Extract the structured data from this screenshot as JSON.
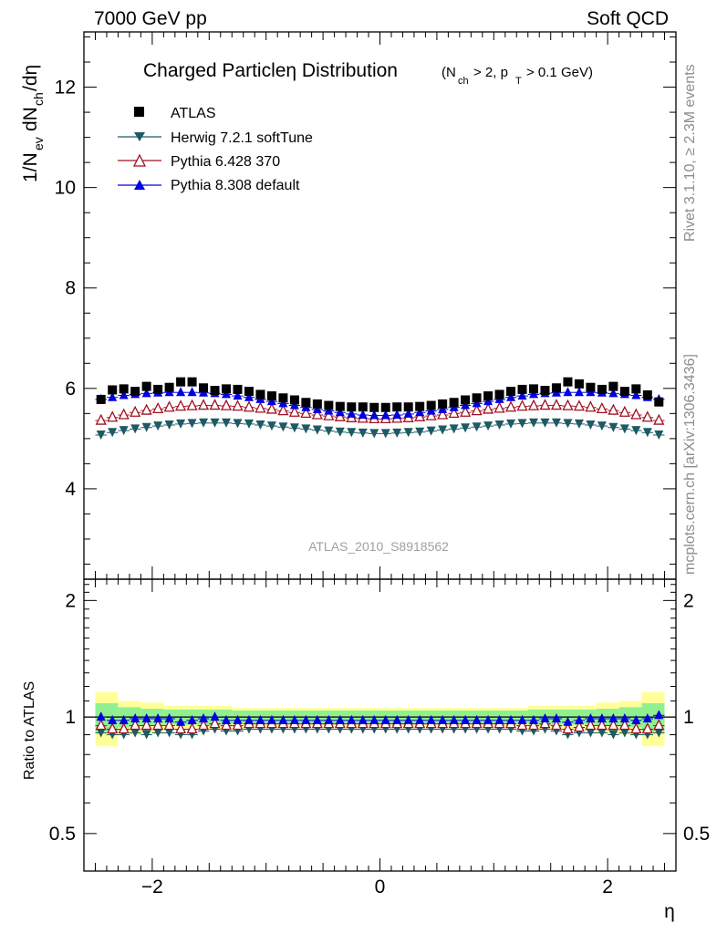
{
  "header": {
    "energy_label": "7000 GeV pp",
    "category_label": "Soft QCD"
  },
  "side_labels": {
    "rivet": "Rivet 3.1.10, ≥ 2.3M events",
    "mcplots": "mcplots.cern.ch [arXiv:1306.3436]"
  },
  "chart_data": [
    {
      "type": "scatter",
      "title": "Charged Particleη Distribution",
      "title_cuts": "(N_ch > 2, p_T > 0.1 GeV)",
      "ylabel": "1/N_ev dN_ch/dη",
      "xlabel": "",
      "watermark": "ATLAS_2010_S8918562",
      "xlim": [
        -2.6,
        2.6
      ],
      "ylim": [
        2.2,
        13.1
      ],
      "y_ticks": [
        4,
        6,
        8,
        10,
        12
      ],
      "legend_position": "top-left",
      "x": [
        -2.45,
        -2.35,
        -2.25,
        -2.15,
        -2.05,
        -1.95,
        -1.85,
        -1.75,
        -1.65,
        -1.55,
        -1.45,
        -1.35,
        -1.25,
        -1.15,
        -1.05,
        -0.95,
        -0.85,
        -0.75,
        -0.65,
        -0.55,
        -0.45,
        -0.35,
        -0.25,
        -0.15,
        -0.05,
        0.05,
        0.15,
        0.25,
        0.35,
        0.45,
        0.55,
        0.65,
        0.75,
        0.85,
        0.95,
        1.05,
        1.15,
        1.25,
        1.35,
        1.45,
        1.55,
        1.65,
        1.75,
        1.85,
        1.95,
        2.05,
        2.15,
        2.25,
        2.35,
        2.45
      ],
      "series": [
        {
          "name": "ATLAS",
          "marker": "square",
          "color": "#000000",
          "values": [
            5.78,
            5.97,
            5.99,
            5.94,
            6.04,
            5.98,
            6.02,
            6.13,
            6.13,
            6.01,
            5.96,
            5.99,
            5.98,
            5.94,
            5.88,
            5.85,
            5.81,
            5.77,
            5.72,
            5.69,
            5.66,
            5.64,
            5.63,
            5.63,
            5.62,
            5.62,
            5.63,
            5.63,
            5.64,
            5.66,
            5.69,
            5.72,
            5.77,
            5.81,
            5.85,
            5.88,
            5.94,
            5.98,
            5.99,
            5.96,
            6.01,
            6.13,
            6.09,
            6.02,
            5.98,
            6.04,
            5.94,
            5.99,
            5.87,
            5.73
          ]
        },
        {
          "name": "Herwig 7.2.1 softTune",
          "marker": "triangle-down",
          "color": "#1e5a64",
          "values": [
            5.07,
            5.12,
            5.16,
            5.19,
            5.22,
            5.25,
            5.27,
            5.29,
            5.3,
            5.31,
            5.31,
            5.31,
            5.3,
            5.29,
            5.27,
            5.25,
            5.23,
            5.21,
            5.19,
            5.17,
            5.15,
            5.13,
            5.12,
            5.11,
            5.1,
            5.1,
            5.11,
            5.12,
            5.13,
            5.15,
            5.17,
            5.19,
            5.21,
            5.23,
            5.25,
            5.27,
            5.29,
            5.3,
            5.31,
            5.31,
            5.31,
            5.3,
            5.29,
            5.27,
            5.25,
            5.22,
            5.19,
            5.16,
            5.12,
            5.07
          ]
        },
        {
          "name": "Pythia 6.428 370",
          "marker": "triangle-up-open",
          "color": "#a01020",
          "values": [
            5.36,
            5.42,
            5.47,
            5.52,
            5.56,
            5.59,
            5.62,
            5.64,
            5.65,
            5.66,
            5.66,
            5.65,
            5.64,
            5.62,
            5.6,
            5.58,
            5.55,
            5.52,
            5.5,
            5.47,
            5.45,
            5.43,
            5.41,
            5.4,
            5.39,
            5.39,
            5.4,
            5.41,
            5.43,
            5.45,
            5.47,
            5.5,
            5.52,
            5.55,
            5.58,
            5.6,
            5.62,
            5.64,
            5.65,
            5.66,
            5.66,
            5.65,
            5.64,
            5.62,
            5.59,
            5.56,
            5.52,
            5.47,
            5.42,
            5.36
          ]
        },
        {
          "name": "Pythia 8.308 default",
          "marker": "triangle-up",
          "color": "#0000e0",
          "values": [
            5.78,
            5.82,
            5.86,
            5.88,
            5.9,
            5.91,
            5.92,
            5.92,
            5.92,
            5.91,
            5.9,
            5.88,
            5.85,
            5.82,
            5.78,
            5.74,
            5.7,
            5.66,
            5.62,
            5.58,
            5.55,
            5.52,
            5.49,
            5.47,
            5.46,
            5.46,
            5.47,
            5.49,
            5.52,
            5.55,
            5.58,
            5.62,
            5.66,
            5.7,
            5.74,
            5.78,
            5.82,
            5.85,
            5.88,
            5.9,
            5.91,
            5.92,
            5.92,
            5.92,
            5.91,
            5.9,
            5.88,
            5.86,
            5.82,
            5.78
          ]
        }
      ]
    },
    {
      "type": "scatter",
      "ylabel": "Ratio to ATLAS",
      "xlabel": "η",
      "xlim": [
        -2.6,
        2.6
      ],
      "ylim": [
        0.4,
        2.27
      ],
      "x_ticks": [
        -2,
        0,
        2
      ],
      "x_tick_labels": [
        "−2",
        "0",
        "2"
      ],
      "y_ticks": [
        0.5,
        1,
        2
      ],
      "y_tick_labels": [
        "0.5",
        "1",
        "2"
      ],
      "band_inner_color": "#90f090",
      "band_outer_color": "#ffff99",
      "band_edges": [
        -2.5,
        -2.3,
        -2.1,
        -1.9,
        -1.3,
        1.3,
        1.9,
        2.1,
        2.3,
        2.5
      ],
      "band_inner_halfwidth": [
        0.085,
        0.06,
        0.05,
        0.045,
        0.04,
        0.045,
        0.05,
        0.06,
        0.085
      ],
      "band_outer_halfwidth": [
        0.16,
        0.1,
        0.09,
        0.07,
        0.055,
        0.07,
        0.09,
        0.1,
        0.16
      ],
      "series": [
        {
          "name": "Herwig 7.2.1 softTune",
          "marker": "triangle-down",
          "color": "#1e5a64",
          "values": [
            0.91,
            0.9,
            0.9,
            0.91,
            0.9,
            0.91,
            0.91,
            0.9,
            0.9,
            0.92,
            0.93,
            0.92,
            0.92,
            0.93,
            0.93,
            0.93,
            0.93,
            0.93,
            0.93,
            0.93,
            0.93,
            0.93,
            0.93,
            0.93,
            0.93,
            0.93,
            0.93,
            0.93,
            0.93,
            0.93,
            0.93,
            0.93,
            0.93,
            0.93,
            0.93,
            0.93,
            0.93,
            0.92,
            0.92,
            0.93,
            0.92,
            0.9,
            0.91,
            0.91,
            0.91,
            0.9,
            0.91,
            0.9,
            0.9,
            0.91
          ]
        },
        {
          "name": "Pythia 6.428 370",
          "marker": "triangle-up-open",
          "color": "#a01020",
          "values": [
            0.95,
            0.93,
            0.93,
            0.95,
            0.95,
            0.95,
            0.95,
            0.93,
            0.93,
            0.95,
            0.96,
            0.95,
            0.95,
            0.96,
            0.96,
            0.96,
            0.96,
            0.96,
            0.96,
            0.96,
            0.96,
            0.96,
            0.96,
            0.96,
            0.96,
            0.96,
            0.96,
            0.96,
            0.96,
            0.96,
            0.96,
            0.96,
            0.96,
            0.96,
            0.96,
            0.96,
            0.96,
            0.95,
            0.95,
            0.96,
            0.95,
            0.93,
            0.94,
            0.95,
            0.95,
            0.95,
            0.95,
            0.93,
            0.93,
            0.95
          ]
        },
        {
          "name": "Pythia 8.308 default",
          "marker": "triangle-up",
          "color": "#0000e0",
          "values": [
            1.0,
            0.98,
            0.98,
            0.99,
            0.99,
            0.99,
            0.99,
            0.97,
            0.98,
            0.99,
            1.0,
            0.98,
            0.98,
            0.98,
            0.98,
            0.98,
            0.98,
            0.98,
            0.98,
            0.98,
            0.98,
            0.98,
            0.98,
            0.98,
            0.98,
            0.98,
            0.98,
            0.98,
            0.98,
            0.98,
            0.98,
            0.98,
            0.98,
            0.98,
            0.98,
            0.98,
            0.98,
            0.98,
            0.98,
            0.99,
            0.99,
            0.97,
            0.98,
            0.99,
            0.99,
            0.99,
            0.99,
            0.98,
            0.99,
            1.01
          ]
        }
      ]
    }
  ]
}
